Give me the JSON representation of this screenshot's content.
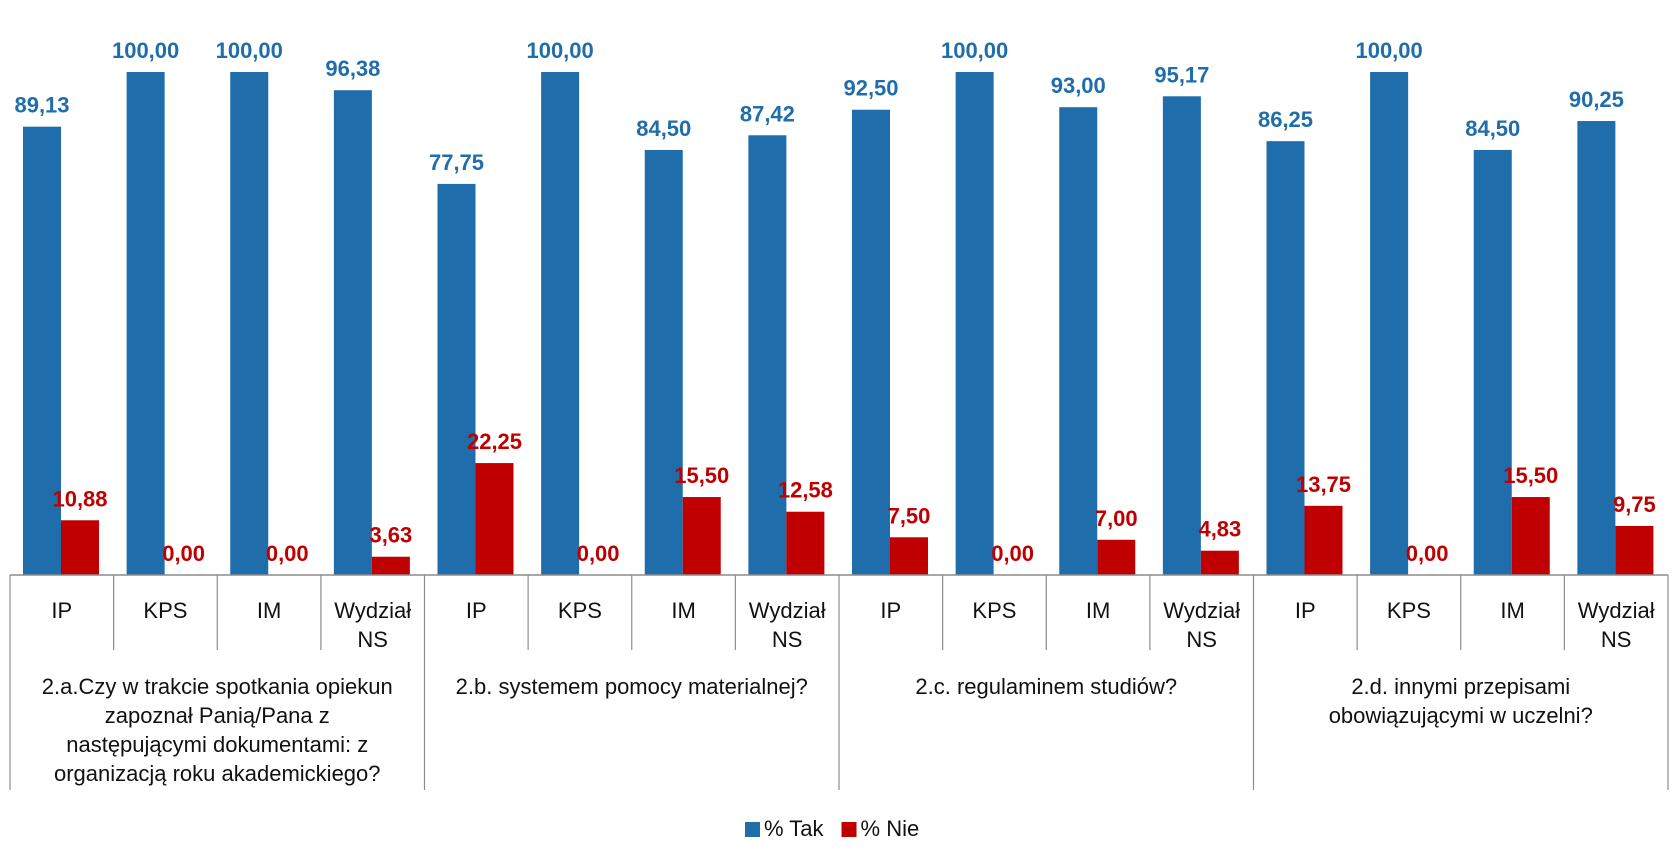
{
  "chart_data": {
    "type": "bar",
    "categories": [
      "IP",
      "KPS",
      "IM",
      "Wydział NS",
      "IP",
      "KPS",
      "IM",
      "Wydział NS",
      "IP",
      "KPS",
      "IM",
      "Wydział NS",
      "IP",
      "KPS",
      "IM",
      "Wydział NS"
    ],
    "groups": [
      "2.a.Czy w trakcie spotkania opiekun zapoznał Panią/Pana z następującymi dokumentami: z organizacją roku akademickiego?",
      "2.b. systemem pomocy materialnej?",
      "2.c. regulaminem studiów?",
      "2.d. innymi przepisami obowiązującymi w uczelni?"
    ],
    "series": [
      {
        "name": "% Tak",
        "color": "#1F6EAB",
        "values": [
          89.13,
          100,
          100,
          96.38,
          77.75,
          100,
          84.5,
          87.42,
          92.5,
          100,
          93,
          95.17,
          86.25,
          100,
          84.5,
          90.25
        ],
        "value_labels": [
          "89,13",
          "100,00",
          "100,00",
          "96,38",
          "77,75",
          "100,00",
          "84,50",
          "87,42",
          "92,50",
          "100,00",
          "93,00",
          "95,17",
          "86,25",
          "100,00",
          "84,50",
          "90,25"
        ]
      },
      {
        "name": "% Nie",
        "color": "#C00000",
        "values": [
          10.88,
          0,
          0,
          3.63,
          22.25,
          0,
          15.5,
          12.58,
          7.5,
          0,
          7,
          4.83,
          13.75,
          0,
          15.5,
          9.75
        ],
        "value_labels": [
          "10,88",
          "0,00",
          "0,00",
          "3,63",
          "22,25",
          "0,00",
          "15,50",
          "12,58",
          "7,50",
          "0,00",
          "7,00",
          "4,83",
          "13,75",
          "0,00",
          "15,50",
          "9,75"
        ]
      }
    ],
    "ylim": [
      0,
      100
    ],
    "legend": "bottom"
  }
}
